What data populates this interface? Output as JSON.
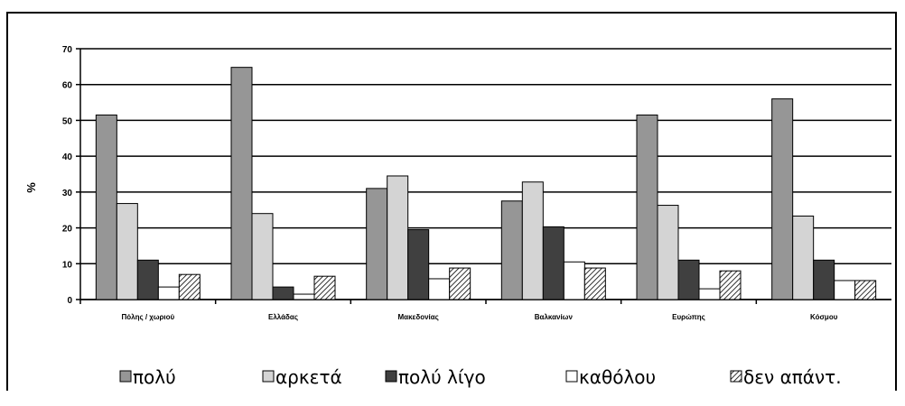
{
  "chart_data": {
    "type": "bar",
    "ylabel": "%",
    "xlabel": "",
    "ylim": [
      0,
      70
    ],
    "ytick_step": 10,
    "grid": true,
    "legend_position": "bottom",
    "categories": [
      "Πόλης / χωριού",
      "Ελλάδας",
      "Μακεδονίας",
      "Βαλκανίων",
      "Ευρώπης",
      "Κόσμου"
    ],
    "series": [
      {
        "name": "πολύ",
        "values": [
          51.5,
          64.8,
          31,
          27.5,
          51.5,
          56
        ],
        "color": "#969696",
        "pattern": false
      },
      {
        "name": "αρκετά",
        "values": [
          26.8,
          24,
          34.5,
          32.8,
          26.3,
          23.3
        ],
        "color": "#d4d4d4",
        "pattern": false
      },
      {
        "name": "πολύ λίγο",
        "values": [
          11,
          3.5,
          19.5,
          20.3,
          11,
          11
        ],
        "color": "#404040",
        "pattern": false
      },
      {
        "name": "καθόλου",
        "values": [
          3.5,
          1.5,
          5.8,
          10.5,
          3,
          5.3
        ],
        "color": "#ffffff",
        "pattern": false
      },
      {
        "name": "δεν απάντ.",
        "values": [
          7,
          6.5,
          8.8,
          8.8,
          8,
          5.3
        ],
        "color": "#ffffff",
        "pattern": true
      }
    ]
  }
}
